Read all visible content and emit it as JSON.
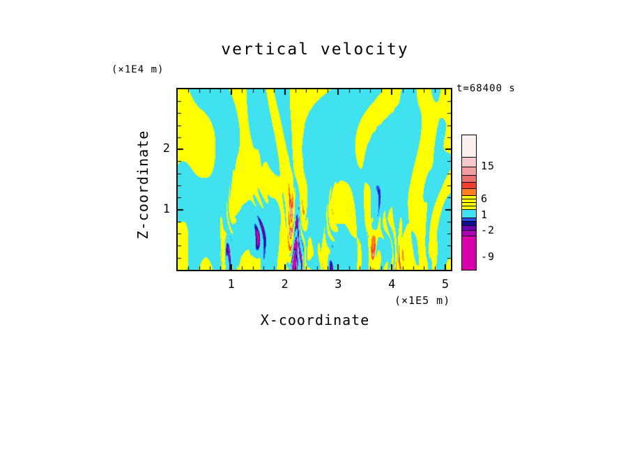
{
  "chart_data": {
    "type": "heatmap",
    "title": "vertical velocity",
    "annotation": "t=68400 s",
    "xlabel": "X-coordinate",
    "x_units": "(×1E5 m)",
    "ylabel": "Z-coordinate",
    "y_units": "(×1E4 m)",
    "x_ticks": [
      1,
      2,
      3,
      4,
      5
    ],
    "y_ticks": [
      1,
      2
    ],
    "x_range": [
      0,
      5.15
    ],
    "y_range": [
      0,
      3.0
    ],
    "legend_position": "right",
    "grid": false,
    "field_palette": {
      "positive": "#FFFF00",
      "negative": "#40E2EF",
      "extreme_positive": [
        "#FF7F20",
        "#F04030",
        "#F0A0A0"
      ],
      "extreme_negative": [
        "#2A50E8",
        "#101090",
        "#6A00B0",
        "#D800A8"
      ]
    },
    "colorbar": {
      "labeled_levels": [
        15,
        6,
        1,
        -2,
        -9
      ],
      "labels": [
        {
          "text": "15",
          "y": 45
        },
        {
          "text": "6",
          "y": 92
        },
        {
          "text": "1",
          "y": 115
        },
        {
          "text": "-2",
          "y": 137
        },
        {
          "text": "-9",
          "y": 175
        }
      ],
      "segments": [
        {
          "color": "#FAF1EF",
          "h": 32
        },
        {
          "color": "#F6CACA",
          "h": 14
        },
        {
          "color": "#F0A0A0",
          "h": 12
        },
        {
          "color": "#EA7070",
          "h": 10
        },
        {
          "color": "#F04030",
          "h": 9
        },
        {
          "color": "#FF7F20",
          "h": 10
        },
        {
          "color": "#FFFF00",
          "h": 5
        },
        {
          "color": "#FFFF00",
          "h": 5
        },
        {
          "color": "#FFFF00",
          "h": 5
        },
        {
          "color": "#FFFF00",
          "h": 5
        },
        {
          "color": "#40E2EF",
          "h": 12
        },
        {
          "color": "#2A50E8",
          "h": 5
        },
        {
          "color": "#101090",
          "h": 6
        },
        {
          "color": "#6A00B0",
          "h": 7
        },
        {
          "color": "#A800B0",
          "h": 8
        },
        {
          "color": "#D800A8",
          "h": 48
        }
      ]
    }
  }
}
